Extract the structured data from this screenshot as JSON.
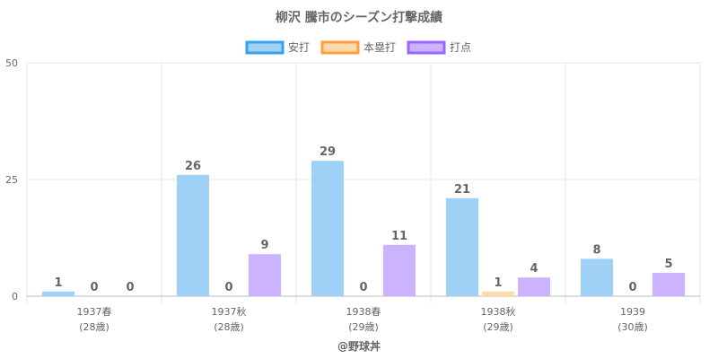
{
  "chart_data": {
    "type": "bar",
    "title": "柳沢 騰市のシーズン打撃成績",
    "categories": [
      "1937春",
      "1937秋",
      "1938春",
      "1938秋",
      "1939"
    ],
    "category_sublabels": [
      "(28歳)",
      "(28歳)",
      "(29歳)",
      "(29歳)",
      "(30歳)"
    ],
    "series": [
      {
        "name": "安打",
        "values": [
          1,
          26,
          29,
          21,
          8
        ],
        "color": "#9fd0f5",
        "border": "#36a2eb"
      },
      {
        "name": "本塁打",
        "values": [
          0,
          0,
          0,
          1,
          0
        ],
        "color": "#ffd9a8",
        "border": "#ff9f40"
      },
      {
        "name": "打点",
        "values": [
          0,
          9,
          11,
          4,
          5
        ],
        "color": "#ccb3ff",
        "border": "#9966ff"
      }
    ],
    "ylim": [
      0,
      50
    ],
    "yticks": [
      0,
      25,
      50
    ],
    "xlabel": "",
    "ylabel": "",
    "grid": true,
    "legend_position": "top",
    "footer": "@野球丼"
  }
}
